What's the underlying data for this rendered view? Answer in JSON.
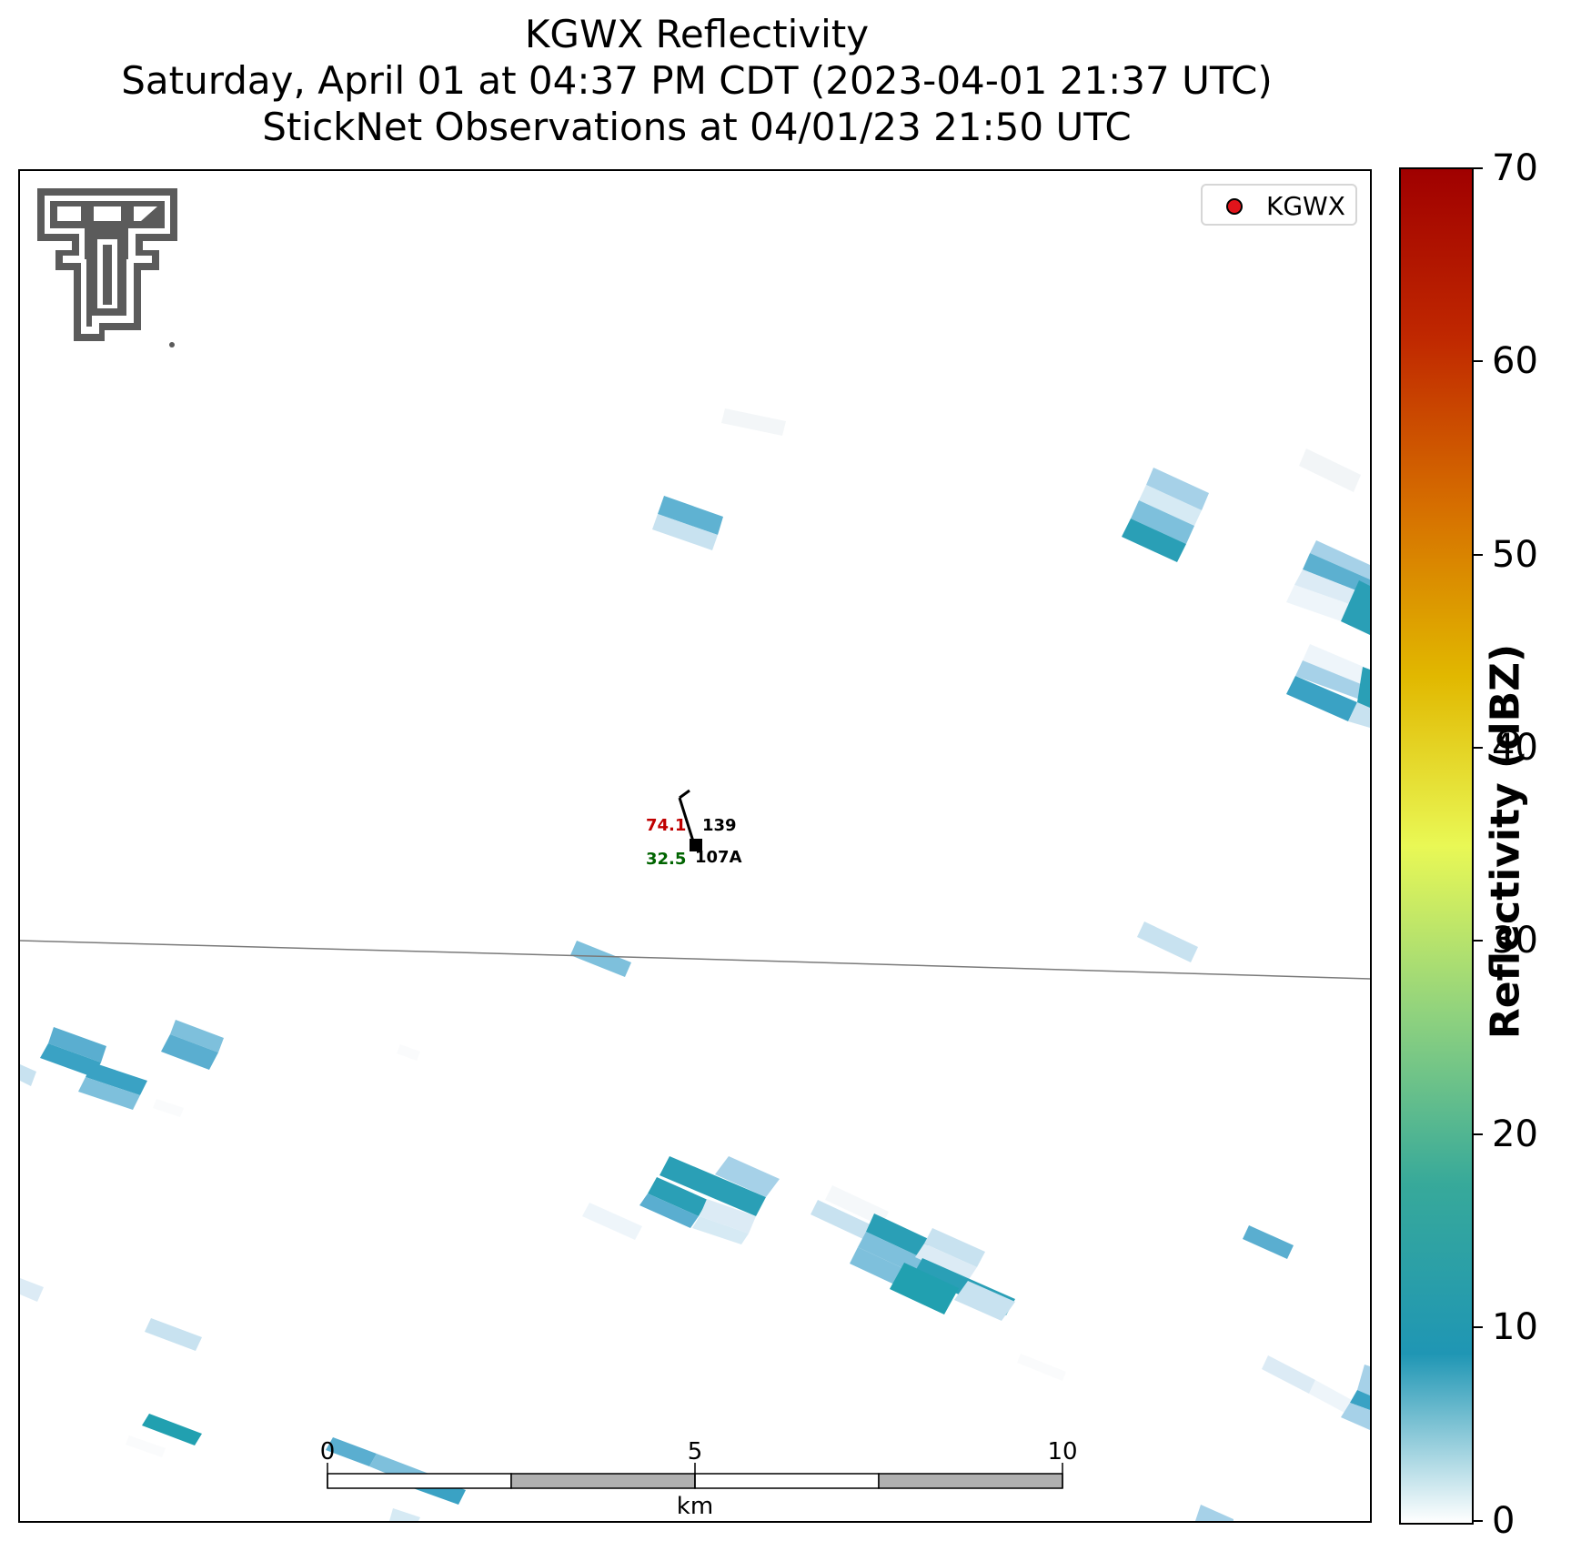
{
  "title": {
    "line1": "KGWX Reflectivity",
    "line2": "Saturday, April 01 at 04:37 PM CDT (2023-04-01 21:37 UTC)",
    "line3": "StickNet Observations at 04/01/23 21:50 UTC"
  },
  "legend": {
    "label": "KGWX",
    "marker_color": "#e0141b"
  },
  "station": {
    "temperature": "74.1",
    "dewpoint": "32.5",
    "pressure": "139",
    "id": "107A",
    "temperature_color": "#c00000",
    "dewpoint_color": "#006400"
  },
  "scalebar": {
    "labels": [
      "0",
      "5",
      "10"
    ],
    "unit": "km"
  },
  "colorbar": {
    "title": "Reflectivity (dBZ)",
    "ticks": [
      "0",
      "10",
      "20",
      "30",
      "40",
      "50",
      "60",
      "70"
    ],
    "range": [
      0,
      70
    ],
    "colors": [
      "#ffffff",
      "#1f96b4",
      "#37a99a",
      "#8fd27e",
      "#e9f855",
      "#e1b800",
      "#d66f00",
      "#c02800",
      "#a00000"
    ]
  }
}
